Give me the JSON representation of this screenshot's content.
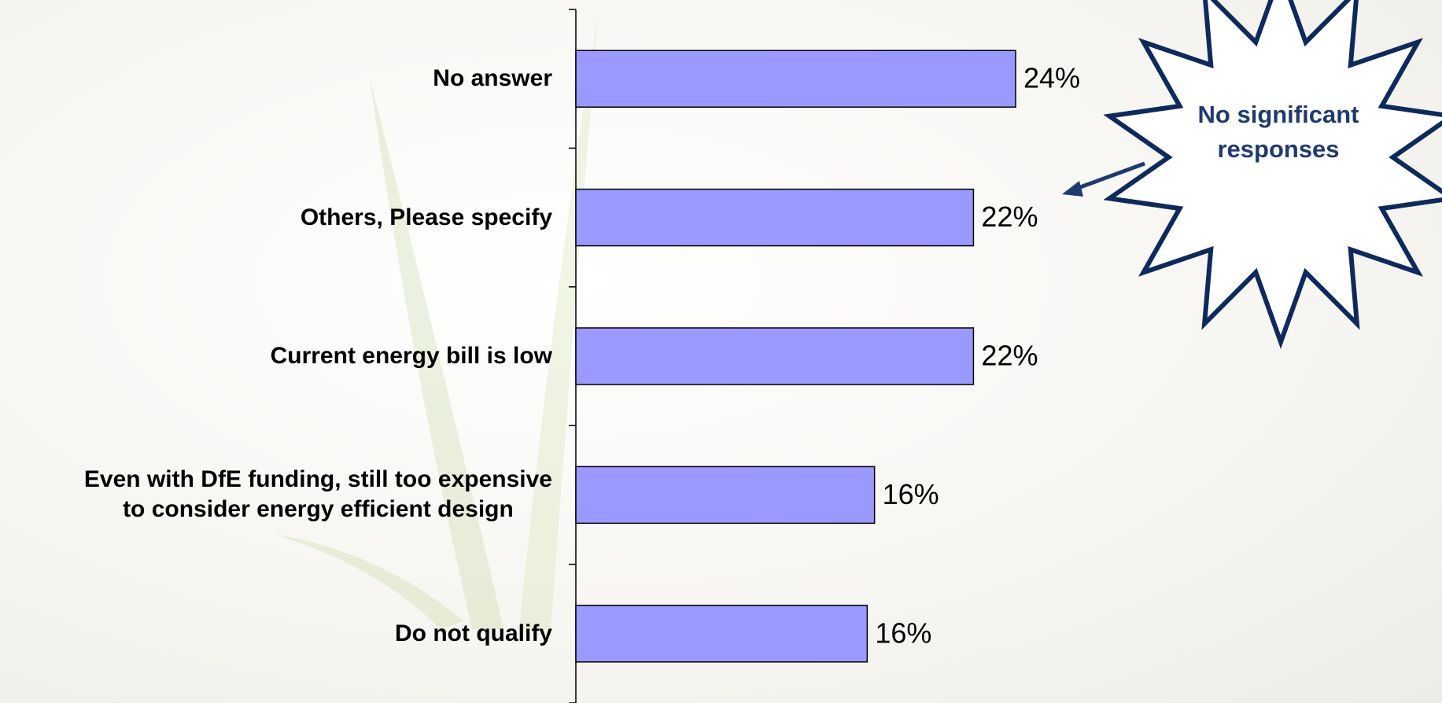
{
  "chart_data": {
    "type": "bar",
    "orientation": "horizontal",
    "categories": [
      "No answer",
      "Others, Please specify",
      "Current energy bill is low",
      "Even with DfE funding, still too expensive\nto consider energy efficient design",
      "Do not qualify"
    ],
    "values": [
      24,
      21.7,
      21.7,
      16.3,
      15.9
    ],
    "value_labels": [
      "24%",
      "22%",
      "22%",
      "16%",
      "16%"
    ],
    "color": "#9999ff",
    "annotation": "No significant\nresponses"
  }
}
